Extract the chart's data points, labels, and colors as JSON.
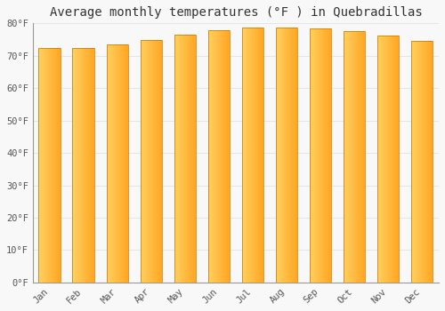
{
  "title": "Average monthly temperatures (°F ) in Quebradillas",
  "months": [
    "Jan",
    "Feb",
    "Mar",
    "Apr",
    "May",
    "Jun",
    "Jul",
    "Aug",
    "Sep",
    "Oct",
    "Nov",
    "Dec"
  ],
  "values": [
    72.5,
    72.3,
    73.5,
    74.8,
    76.5,
    77.9,
    78.8,
    78.8,
    78.3,
    77.5,
    76.1,
    74.5
  ],
  "ylim": [
    0,
    80
  ],
  "yticks": [
    0,
    10,
    20,
    30,
    40,
    50,
    60,
    70,
    80
  ],
  "ytick_labels": [
    "0°F",
    "10°F",
    "20°F",
    "30°F",
    "40°F",
    "50°F",
    "60°F",
    "70°F",
    "80°F"
  ],
  "bar_color_center": "#FFA520",
  "bar_color_edge": "#E08800",
  "bar_color_light": "#FFD060",
  "background_color": "#F8F8F8",
  "grid_color": "#DDDDDD",
  "title_fontsize": 10,
  "tick_fontsize": 7.5,
  "font_family": "monospace",
  "bar_width": 0.65
}
